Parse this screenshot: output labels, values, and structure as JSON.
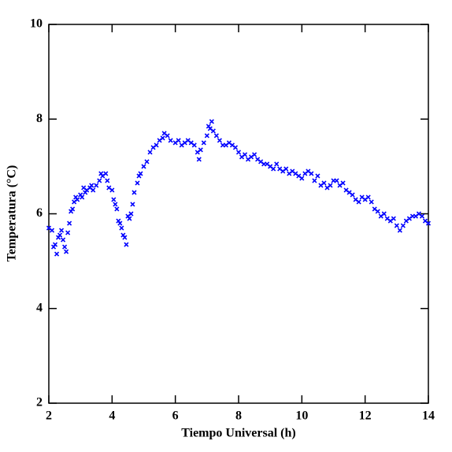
{
  "chart_data": {
    "type": "scatter",
    "xlabel": "Tiempo Universal (h)",
    "ylabel": "Temperatura (°C)",
    "color": "#0000ff",
    "marker": "x",
    "xlim": [
      2,
      14
    ],
    "ylim": [
      2,
      10
    ],
    "xticks": [
      2,
      4,
      6,
      8,
      10,
      12,
      14
    ],
    "yticks": [
      2,
      4,
      6,
      8,
      10
    ],
    "grid": false,
    "x": [
      2.0,
      2.1,
      2.15,
      2.2,
      2.25,
      2.3,
      2.35,
      2.4,
      2.45,
      2.5,
      2.55,
      2.6,
      2.65,
      2.7,
      2.75,
      2.8,
      2.85,
      2.9,
      3.0,
      3.05,
      3.1,
      3.15,
      3.2,
      3.3,
      3.35,
      3.4,
      3.5,
      3.6,
      3.65,
      3.7,
      3.8,
      3.85,
      3.9,
      4.0,
      4.05,
      4.1,
      4.15,
      4.2,
      4.25,
      4.3,
      4.35,
      4.4,
      4.45,
      4.5,
      4.55,
      4.6,
      4.65,
      4.7,
      4.8,
      4.85,
      4.9,
      5.0,
      5.1,
      5.2,
      5.3,
      5.4,
      5.5,
      5.6,
      5.65,
      5.75,
      5.85,
      6.0,
      6.1,
      6.2,
      6.3,
      6.4,
      6.5,
      6.6,
      6.7,
      6.75,
      6.8,
      6.9,
      7.0,
      7.05,
      7.1,
      7.15,
      7.2,
      7.3,
      7.4,
      7.5,
      7.6,
      7.7,
      7.8,
      7.9,
      8.0,
      8.1,
      8.2,
      8.3,
      8.4,
      8.5,
      8.6,
      8.7,
      8.8,
      8.9,
      9.0,
      9.1,
      9.2,
      9.3,
      9.4,
      9.5,
      9.6,
      9.7,
      9.8,
      9.9,
      10.0,
      10.1,
      10.2,
      10.3,
      10.4,
      10.5,
      10.6,
      10.7,
      10.8,
      10.9,
      11.0,
      11.1,
      11.2,
      11.3,
      11.4,
      11.5,
      11.6,
      11.7,
      11.8,
      11.9,
      12.0,
      12.1,
      12.2,
      12.3,
      12.4,
      12.5,
      12.6,
      12.7,
      12.8,
      12.9,
      13.0,
      13.1,
      13.2,
      13.3,
      13.4,
      13.5,
      13.6,
      13.7,
      13.8,
      13.9,
      14.0
    ],
    "y": [
      5.7,
      5.65,
      5.3,
      5.35,
      5.15,
      5.5,
      5.55,
      5.65,
      5.45,
      5.3,
      5.2,
      5.6,
      5.8,
      6.05,
      6.1,
      6.25,
      6.35,
      6.3,
      6.4,
      6.35,
      6.55,
      6.45,
      6.5,
      6.55,
      6.6,
      6.5,
      6.6,
      6.7,
      6.85,
      6.8,
      6.85,
      6.7,
      6.55,
      6.5,
      6.3,
      6.2,
      6.1,
      5.85,
      5.8,
      5.7,
      5.55,
      5.5,
      5.35,
      5.95,
      5.9,
      6.0,
      6.2,
      6.45,
      6.65,
      6.8,
      6.85,
      7.0,
      7.1,
      7.3,
      7.4,
      7.45,
      7.55,
      7.6,
      7.7,
      7.65,
      7.55,
      7.5,
      7.55,
      7.45,
      7.5,
      7.55,
      7.5,
      7.45,
      7.3,
      7.15,
      7.35,
      7.5,
      7.65,
      7.85,
      7.8,
      7.95,
      7.75,
      7.65,
      7.55,
      7.45,
      7.45,
      7.5,
      7.45,
      7.4,
      7.3,
      7.2,
      7.25,
      7.15,
      7.2,
      7.25,
      7.15,
      7.1,
      7.05,
      7.05,
      7.0,
      6.95,
      7.05,
      6.95,
      6.9,
      6.95,
      6.85,
      6.9,
      6.85,
      6.8,
      6.75,
      6.85,
      6.9,
      6.85,
      6.7,
      6.8,
      6.6,
      6.65,
      6.55,
      6.6,
      6.7,
      6.7,
      6.6,
      6.65,
      6.5,
      6.45,
      6.4,
      6.3,
      6.25,
      6.35,
      6.3,
      6.35,
      6.25,
      6.1,
      6.05,
      5.95,
      6.0,
      5.9,
      5.85,
      5.9,
      5.75,
      5.65,
      5.75,
      5.85,
      5.9,
      5.95,
      5.95,
      6.0,
      5.95,
      5.85,
      5.8
    ]
  }
}
